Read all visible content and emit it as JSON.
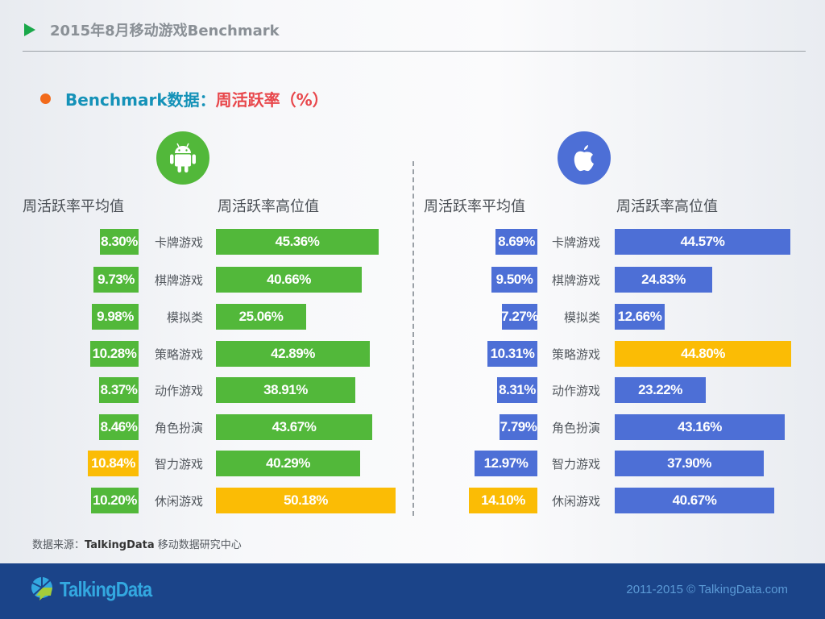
{
  "header": {
    "title": "2015年8月移动游戏Benchmark",
    "subtitle_prefix": "Benchmark数据：",
    "subtitle_metric": "周活跃率（%）"
  },
  "colors": {
    "android": "#52b83a",
    "ios": "#4d6fd6",
    "highlight": "#fbbc05",
    "title_accent": "#1592b8",
    "metric_accent": "#e8474b",
    "footer_bg": "#1b4489"
  },
  "android": {
    "icon": "android-icon",
    "avg_header": "周活跃率平均值",
    "high_header": "周活跃率高位值"
  },
  "ios": {
    "icon": "apple-icon",
    "avg_header": "周活跃率平均值",
    "high_header": "周活跃率高位值"
  },
  "chart_data": [
    {
      "type": "bar",
      "title": "Android 周活跃率",
      "categories": [
        "卡牌游戏",
        "棋牌游戏",
        "模拟类",
        "策略游戏",
        "动作游戏",
        "角色扮演",
        "智力游戏",
        "休闲游戏"
      ],
      "series": [
        {
          "name": "周活跃率平均值",
          "values": [
            8.3,
            9.73,
            9.98,
            10.28,
            8.37,
            8.46,
            10.84,
            10.2
          ],
          "labels": [
            "8.30%",
            "9.73%",
            "9.98%",
            "10.28%",
            "8.37%",
            "8.46%",
            "10.84%",
            "10.20%"
          ],
          "highlight_index": 6
        },
        {
          "name": "周活跃率高位值",
          "values": [
            45.36,
            40.66,
            25.06,
            42.89,
            38.91,
            43.67,
            40.29,
            50.18
          ],
          "labels": [
            "45.36%",
            "40.66%",
            "25.06%",
            "42.89%",
            "38.91%",
            "43.67%",
            "40.29%",
            "50.18%"
          ],
          "highlight_index": 7
        }
      ],
      "xlabel": "",
      "ylabel": "%"
    },
    {
      "type": "bar",
      "title": "iOS 周活跃率",
      "categories": [
        "卡牌游戏",
        "棋牌游戏",
        "模拟类",
        "策略游戏",
        "动作游戏",
        "角色扮演",
        "智力游戏",
        "休闲游戏"
      ],
      "series": [
        {
          "name": "周活跃率平均值",
          "values": [
            8.69,
            9.5,
            7.27,
            10.31,
            8.31,
            7.79,
            12.97,
            14.1
          ],
          "labels": [
            "8.69%",
            "9.50%",
            "7.27%",
            "10.31%",
            "8.31%",
            "7.79%",
            "12.97%",
            "14.10%"
          ],
          "highlight_index": 7
        },
        {
          "name": "周活跃率高位值",
          "values": [
            44.57,
            24.83,
            12.66,
            44.8,
            23.22,
            43.16,
            37.9,
            40.67
          ],
          "labels": [
            "44.57%",
            "24.83%",
            "12.66%",
            "44.80%",
            "23.22%",
            "43.16%",
            "37.90%",
            "40.67%"
          ],
          "highlight_index": 3
        }
      ],
      "xlabel": "",
      "ylabel": "%"
    }
  ],
  "source": {
    "prefix": "数据来源：",
    "brand": "TalkingData",
    "suffix": " 移动数据研究中心"
  },
  "footer": {
    "brand": "TalkingData",
    "copyright": "2011-2015 © TalkingData.com"
  }
}
